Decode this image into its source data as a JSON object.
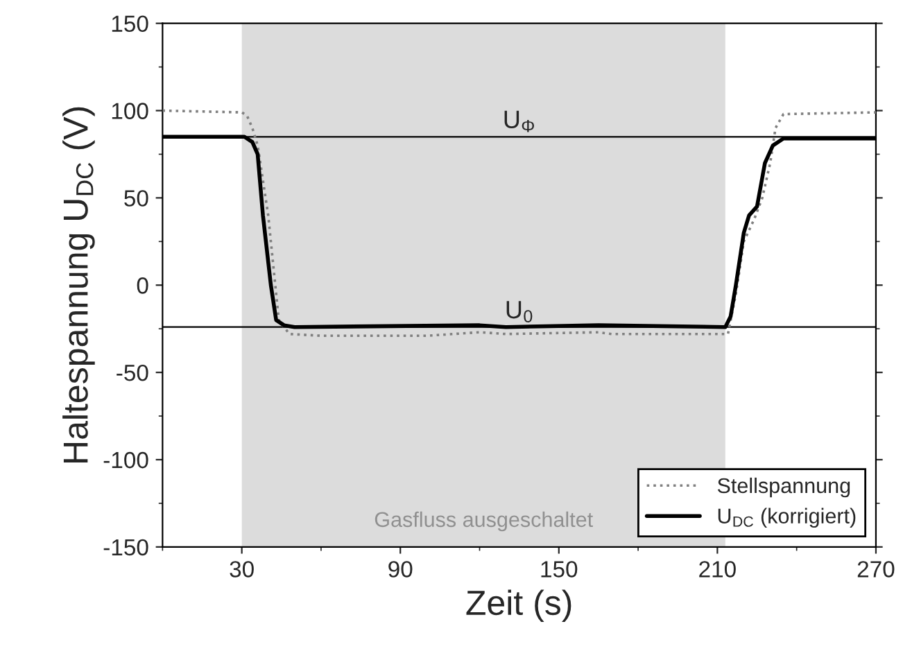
{
  "chart_data": {
    "type": "line",
    "xlabel": "Zeit (s)",
    "ylabel": "Haltespannung U$_{DC}$ (V)",
    "xlim": [
      0,
      270
    ],
    "xticks": [
      30,
      90,
      150,
      210,
      270
    ],
    "ylim": [
      -150,
      150
    ],
    "yticks": [
      -150,
      -100,
      -50,
      0,
      50,
      100,
      150
    ],
    "grid": false,
    "legend": "bottom right",
    "series": [
      {
        "name": "Stellspannung",
        "color": "#808080",
        "line_style": "dotted",
        "x": [
          0,
          30,
          32,
          34,
          36,
          40,
          44,
          48,
          60,
          100,
          120,
          130,
          165,
          170,
          213,
          214,
          217,
          220,
          224,
          227,
          230,
          232,
          235,
          270
        ],
        "values": [
          100,
          99,
          97,
          90,
          80,
          40,
          -20,
          -28,
          -29,
          -29,
          -27,
          -28,
          -27,
          -28,
          -28,
          -28,
          -5,
          25,
          38,
          50,
          70,
          90,
          98,
          99
        ]
      },
      {
        "name": "U$_{DC}$ (korrigiert)",
        "color": "#000000",
        "line_style": "solid",
        "x": [
          0,
          31,
          34,
          36,
          38,
          41,
          43,
          46,
          50,
          120,
          130,
          165,
          213,
          215,
          217,
          220,
          222,
          225,
          228,
          231,
          235,
          270
        ],
        "values": [
          85,
          85,
          82,
          75,
          40,
          0,
          -20,
          -23,
          -24,
          -23,
          -24,
          -23,
          -24,
          -18,
          0,
          30,
          40,
          45,
          70,
          80,
          84,
          84
        ]
      }
    ],
    "ref_lines": [
      {
        "axis": "y",
        "value": 85,
        "label": "U$_{Φ}$",
        "color": "#000000"
      },
      {
        "axis": "y",
        "value": -24,
        "label": "U$_{0}$",
        "color": "#000000"
      }
    ],
    "bands": [
      {
        "axis": "x",
        "from": 30,
        "to": 213,
        "label": "Gasfluss ausgeschaltet",
        "color": "#dcdcdc"
      }
    ]
  }
}
